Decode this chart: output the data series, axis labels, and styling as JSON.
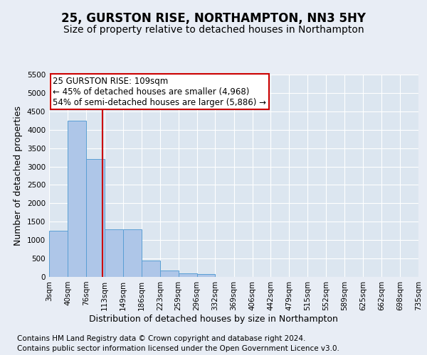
{
  "title_line1": "25, GURSTON RISE, NORTHAMPTON, NN3 5HY",
  "title_line2": "Size of property relative to detached houses in Northampton",
  "xlabel": "Distribution of detached houses by size in Northampton",
  "ylabel": "Number of detached properties",
  "footer_line1": "Contains HM Land Registry data © Crown copyright and database right 2024.",
  "footer_line2": "Contains public sector information licensed under the Open Government Licence v3.0.",
  "annotation_line1": "25 GURSTON RISE: 109sqm",
  "annotation_line2": "← 45% of detached houses are smaller (4,968)",
  "annotation_line3": "54% of semi-detached houses are larger (5,886) →",
  "bar_edges": [
    3,
    40,
    76,
    113,
    149,
    186,
    223,
    259,
    296,
    332,
    369,
    406,
    442,
    479,
    515,
    552,
    589,
    625,
    662,
    698,
    735
  ],
  "bar_heights": [
    1250,
    4250,
    3200,
    1300,
    1300,
    450,
    175,
    100,
    75,
    0,
    0,
    0,
    0,
    0,
    0,
    0,
    0,
    0,
    0,
    0
  ],
  "bar_color": "#aec6e8",
  "bar_edge_color": "#5a9fd4",
  "vline_x": 109,
  "vline_color": "#cc0000",
  "annotation_box_edge_color": "#cc0000",
  "background_color": "#e8edf5",
  "plot_bg_color": "#dce6f0",
  "ylim": [
    0,
    5500
  ],
  "yticks": [
    0,
    500,
    1000,
    1500,
    2000,
    2500,
    3000,
    3500,
    4000,
    4500,
    5000,
    5500
  ],
  "grid_color": "#ffffff",
  "title_fontsize": 12,
  "subtitle_fontsize": 10,
  "axis_label_fontsize": 9,
  "tick_fontsize": 7.5,
  "annotation_fontsize": 8.5,
  "footer_fontsize": 7.5
}
